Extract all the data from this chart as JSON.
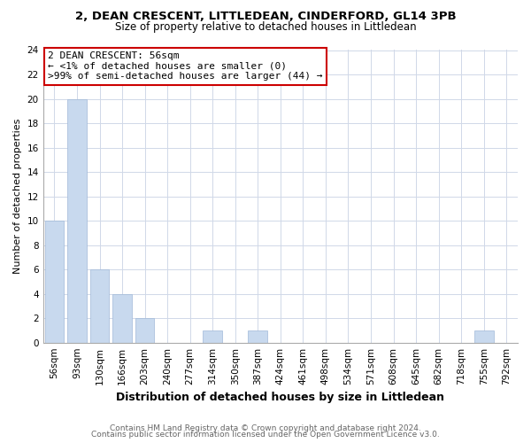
{
  "title1": "2, DEAN CRESCENT, LITTLEDEAN, CINDERFORD, GL14 3PB",
  "title2": "Size of property relative to detached houses in Littledean",
  "xlabel": "Distribution of detached houses by size in Littledean",
  "ylabel": "Number of detached properties",
  "bar_labels": [
    "56sqm",
    "93sqm",
    "130sqm",
    "166sqm",
    "203sqm",
    "240sqm",
    "277sqm",
    "314sqm",
    "350sqm",
    "387sqm",
    "424sqm",
    "461sqm",
    "498sqm",
    "534sqm",
    "571sqm",
    "608sqm",
    "645sqm",
    "682sqm",
    "718sqm",
    "755sqm",
    "792sqm"
  ],
  "bar_values": [
    10,
    20,
    6,
    4,
    2,
    0,
    0,
    1,
    0,
    1,
    0,
    0,
    0,
    0,
    0,
    0,
    0,
    0,
    0,
    1,
    0
  ],
  "bar_color": "#c8d9ee",
  "bar_edge_color": "#a0b8d8",
  "ylim": [
    0,
    24
  ],
  "yticks": [
    0,
    2,
    4,
    6,
    8,
    10,
    12,
    14,
    16,
    18,
    20,
    22,
    24
  ],
  "property_label": "2 DEAN CRESCENT: 56sqm",
  "annotation_line1": "← <1% of detached houses are smaller (0)",
  "annotation_line2": ">99% of semi-detached houses are larger (44) →",
  "annotation_box_color": "#ffffff",
  "annotation_box_edge": "#cc0000",
  "footer1": "Contains HM Land Registry data © Crown copyright and database right 2024.",
  "footer2": "Contains public sector information licensed under the Open Government Licence v3.0.",
  "background_color": "#ffffff",
  "grid_color": "#d0d8e8",
  "subject_bar_index": 0,
  "title1_fontsize": 9.5,
  "title2_fontsize": 8.5,
  "xlabel_fontsize": 9,
  "ylabel_fontsize": 8,
  "tick_fontsize": 7.5,
  "annotation_fontsize": 8,
  "footer_fontsize": 6.5
}
